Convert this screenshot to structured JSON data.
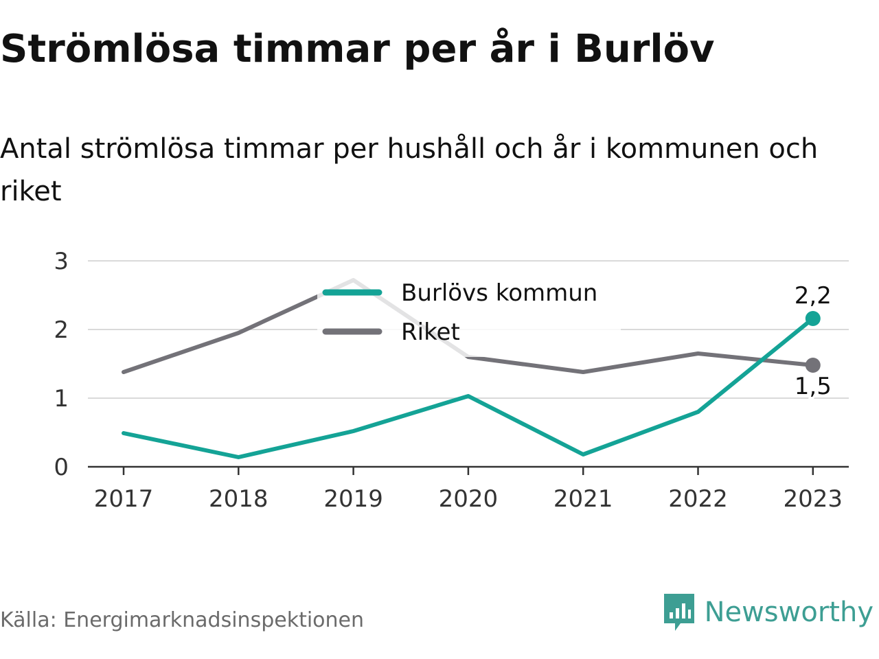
{
  "header": {
    "title": "Strömlösa timmar per år i Burlöv",
    "subtitle": "Antal strömlösa timmar per hushåll och år i kommunen och riket"
  },
  "footer": {
    "source": "Källa: Energimarknadsinspektionen",
    "brand": "Newsworthy",
    "brand_icon": "newsworthy-logo-icon"
  },
  "colors": {
    "burlov": "#14a396",
    "riket": "#737278",
    "grid": "#d9d9d9",
    "axis": "#333333",
    "brand": "#3d9e93"
  },
  "chart_data": {
    "type": "line",
    "title": "Strömlösa timmar per år i Burlöv",
    "subtitle": "Antal strömlösa timmar per hushåll och år i kommunen och riket",
    "xlabel": "",
    "ylabel": "",
    "categories": [
      "2017",
      "2018",
      "2019",
      "2020",
      "2021",
      "2022",
      "2023"
    ],
    "ylim": [
      0,
      3
    ],
    "yticks": [
      0,
      1,
      2,
      3
    ],
    "grid": true,
    "legend": "top-center",
    "series": [
      {
        "name": "Burlövs kommun",
        "color": "#14a396",
        "values": [
          0.49,
          0.14,
          0.52,
          1.03,
          0.18,
          0.8,
          2.16
        ],
        "end_label": "2,2"
      },
      {
        "name": "Riket",
        "color": "#737278",
        "values": [
          1.38,
          1.95,
          2.72,
          1.6,
          1.38,
          1.65,
          1.48
        ],
        "end_label": "1,5"
      }
    ]
  }
}
